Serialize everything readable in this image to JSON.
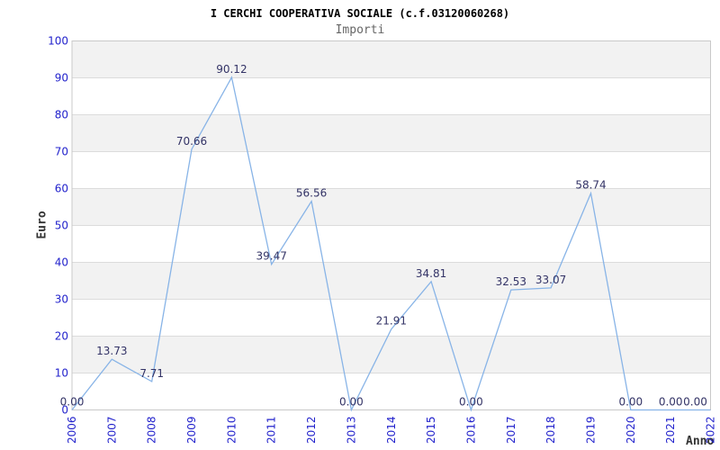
{
  "chart_data": {
    "type": "line",
    "title": "I CERCHI COOPERATIVA SOCIALE (c.f.03120060268)",
    "subtitle": "Importi",
    "xlabel": "Anno",
    "ylabel": "Euro",
    "categories": [
      "2006",
      "2007",
      "2008",
      "2009",
      "2010",
      "2011",
      "2012",
      "2013",
      "2014",
      "2015",
      "2016",
      "2017",
      "2018",
      "2019",
      "2020",
      "2021",
      "2022"
    ],
    "values": [
      0.0,
      13.73,
      7.71,
      70.66,
      90.12,
      39.47,
      56.56,
      0.0,
      21.91,
      34.81,
      0.0,
      32.53,
      33.07,
      58.74,
      0.0,
      0.0,
      0.0
    ],
    "point_labels": [
      "0.00",
      "13.73",
      "7.71",
      "70.66",
      "90.12",
      "39.47",
      "56.56",
      "0.00",
      "21.91",
      "34.81",
      "0.00",
      "32.53",
      "33.07",
      "58.74",
      "0.00",
      "0.00",
      "0.00"
    ],
    "ylim": [
      0,
      100
    ],
    "yticks": [
      0,
      10,
      20,
      30,
      40,
      50,
      60,
      70,
      80,
      90,
      100
    ],
    "grid": true,
    "legend": "none",
    "colors": {
      "line": "#88b4e7",
      "tick_label": "#2323cc",
      "point_label": "#333366",
      "band": "#f2f2f2",
      "gridline": "#dcdcdc",
      "border": "#c9c9c9",
      "title": "#000000",
      "subtitle": "#666666",
      "axis_title": "#333333"
    }
  }
}
